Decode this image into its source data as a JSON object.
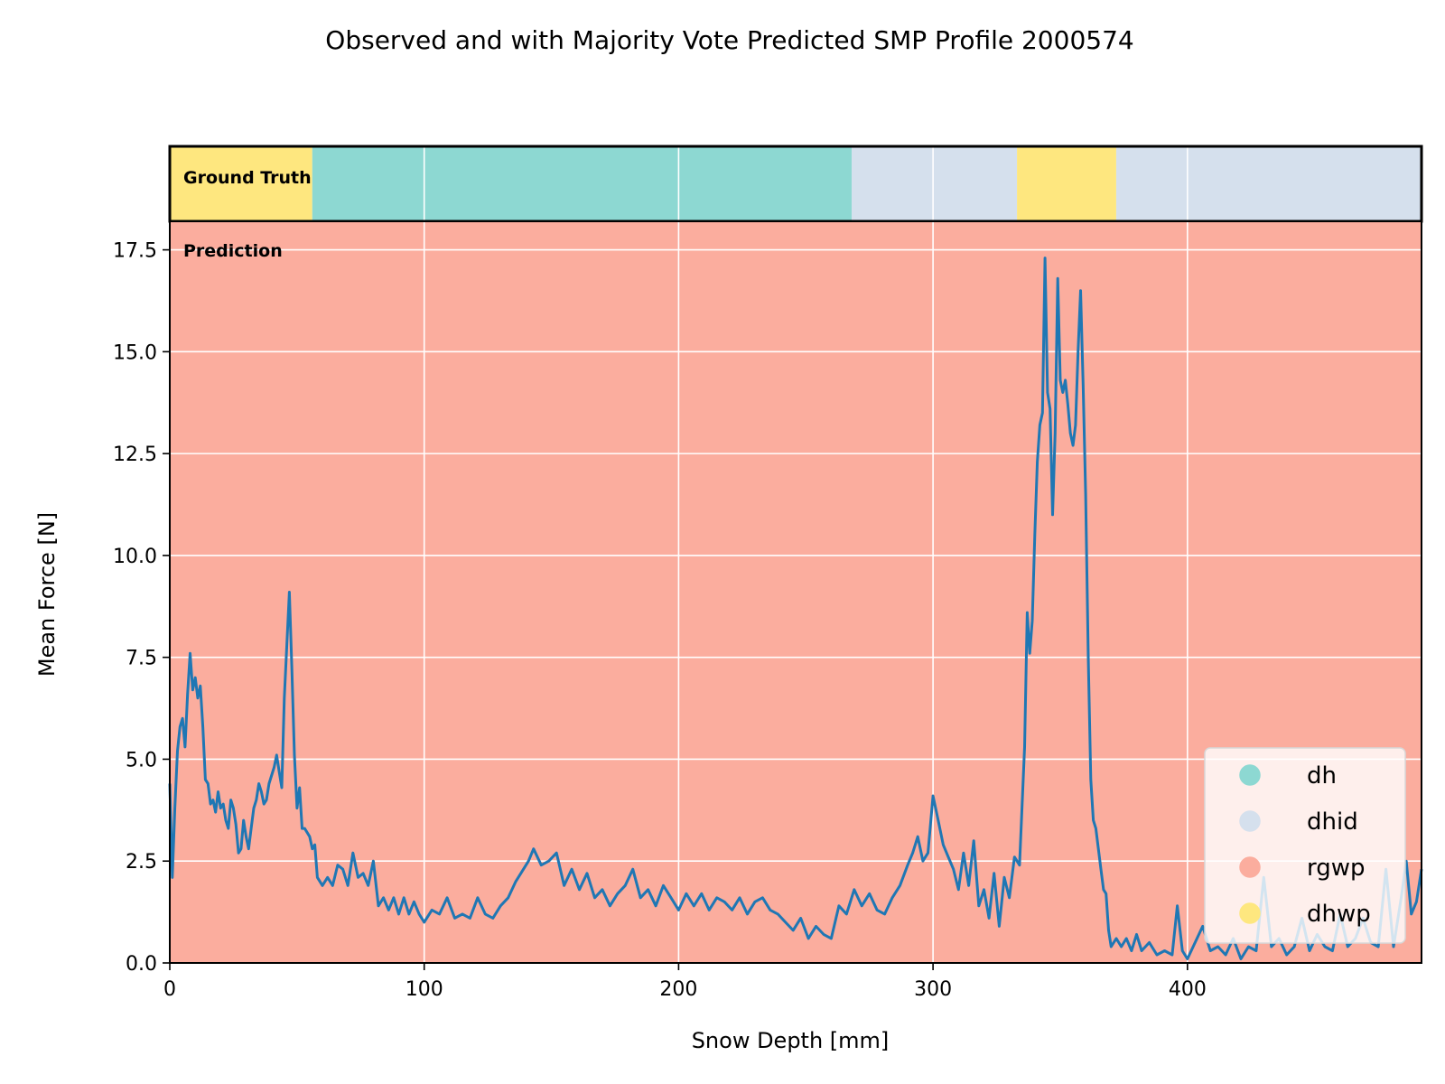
{
  "chart_data": {
    "type": "line",
    "title": "Observed and with Majority Vote Predicted SMP Profile 2000574",
    "xlabel": "Snow Depth [mm]",
    "ylabel": "Mean Force [N]",
    "xlim": [
      0,
      492
    ],
    "ylim": [
      0,
      18.2
    ],
    "xticks": [
      0,
      100,
      200,
      300,
      400
    ],
    "xtick_labels": [
      "0",
      "100",
      "200",
      "300",
      "400"
    ],
    "yticks": [
      0,
      2.5,
      5,
      7.5,
      10,
      12.5,
      15,
      17.5
    ],
    "ytick_labels": [
      "0.0",
      "2.5",
      "5.0",
      "7.5",
      "10.0",
      "12.5",
      "15.0",
      "17.5"
    ],
    "grid": true,
    "legend_position": "bottom-right",
    "panels": {
      "ground_truth_label": "Ground Truth",
      "prediction_label": "Prediction"
    },
    "classes": [
      {
        "name": "dh",
        "color": "#8dd8d2"
      },
      {
        "name": "dhid",
        "color": "#d5e0ed"
      },
      {
        "name": "rgwp",
        "color": "#fbad9e"
      },
      {
        "name": "dhwp",
        "color": "#fee77f"
      }
    ],
    "ground_truth_segments": [
      {
        "start": 0,
        "end": 56,
        "label": "dhwp"
      },
      {
        "start": 56,
        "end": 268,
        "label": "dh"
      },
      {
        "start": 268,
        "end": 333,
        "label": "dhid"
      },
      {
        "start": 333,
        "end": 372,
        "label": "dhwp"
      },
      {
        "start": 372,
        "end": 492,
        "label": "dhid"
      }
    ],
    "prediction_segments": [
      {
        "start": 0,
        "end": 492,
        "label": "rgwp"
      }
    ],
    "series": [
      {
        "color": "#1f77b4",
        "x": [
          0,
          1,
          2,
          3,
          4,
          5,
          6,
          7,
          8,
          9,
          10,
          11,
          12,
          13,
          14,
          15,
          16,
          17,
          18,
          19,
          20,
          21,
          22,
          23,
          24,
          25,
          26,
          27,
          28,
          29,
          30,
          31,
          32,
          33,
          34,
          35,
          36,
          37,
          38,
          39,
          40,
          41,
          42,
          43,
          44,
          45,
          46,
          47,
          48,
          49,
          50,
          51,
          52,
          53,
          54,
          55,
          56,
          57,
          58,
          60,
          62,
          64,
          66,
          68,
          70,
          72,
          74,
          76,
          78,
          80,
          82,
          84,
          86,
          88,
          90,
          92,
          94,
          96,
          98,
          100,
          103,
          106,
          109,
          112,
          115,
          118,
          121,
          124,
          127,
          130,
          133,
          136,
          139,
          141,
          143,
          146,
          149,
          152,
          155,
          158,
          161,
          164,
          167,
          170,
          173,
          176,
          179,
          182,
          185,
          188,
          191,
          194,
          197,
          200,
          203,
          206,
          209,
          212,
          215,
          218,
          221,
          224,
          227,
          230,
          233,
          236,
          239,
          242,
          245,
          248,
          251,
          254,
          257,
          260,
          263,
          266,
          269,
          272,
          275,
          278,
          281,
          284,
          287,
          290,
          292,
          294,
          296,
          298,
          300,
          302,
          304,
          306,
          308,
          310,
          312,
          314,
          316,
          318,
          320,
          322,
          324,
          326,
          328,
          330,
          332,
          334,
          336,
          337,
          338,
          339,
          340,
          341,
          342,
          343,
          344,
          345,
          346,
          347,
          348,
          349,
          350,
          351,
          352,
          353,
          354,
          355,
          356,
          357,
          358,
          359,
          360,
          361,
          362,
          363,
          364,
          365,
          366,
          367,
          368,
          369,
          370,
          372,
          374,
          376,
          378,
          380,
          382,
          385,
          388,
          391,
          394,
          396,
          398,
          400,
          403,
          406,
          409,
          412,
          415,
          418,
          421,
          424,
          427,
          430,
          433,
          436,
          439,
          442,
          445,
          448,
          451,
          454,
          457,
          460,
          463,
          466,
          469,
          472,
          475,
          478,
          481,
          484,
          486,
          488,
          490,
          492
        ],
        "y": [
          4.4,
          2.1,
          3.8,
          5.2,
          5.8,
          6.0,
          5.3,
          6.6,
          7.6,
          6.7,
          7.0,
          6.5,
          6.8,
          5.8,
          4.5,
          4.4,
          3.9,
          4.0,
          3.7,
          4.2,
          3.8,
          3.9,
          3.5,
          3.3,
          4.0,
          3.8,
          3.4,
          2.7,
          2.8,
          3.5,
          3.1,
          2.8,
          3.3,
          3.8,
          4.0,
          4.4,
          4.2,
          3.9,
          4.0,
          4.4,
          4.6,
          4.8,
          5.1,
          4.7,
          4.3,
          6.5,
          7.8,
          9.1,
          7.2,
          5.1,
          3.8,
          4.3,
          3.3,
          3.3,
          3.2,
          3.1,
          2.8,
          2.9,
          2.1,
          1.9,
          2.1,
          1.9,
          2.4,
          2.3,
          1.9,
          2.7,
          2.1,
          2.2,
          1.9,
          2.5,
          1.4,
          1.6,
          1.3,
          1.6,
          1.2,
          1.6,
          1.2,
          1.5,
          1.2,
          1.0,
          1.3,
          1.2,
          1.6,
          1.1,
          1.2,
          1.1,
          1.6,
          1.2,
          1.1,
          1.4,
          1.6,
          2.0,
          2.3,
          2.5,
          2.8,
          2.4,
          2.5,
          2.7,
          1.9,
          2.3,
          1.8,
          2.2,
          1.6,
          1.8,
          1.4,
          1.7,
          1.9,
          2.3,
          1.6,
          1.8,
          1.4,
          1.9,
          1.6,
          1.3,
          1.7,
          1.4,
          1.7,
          1.3,
          1.6,
          1.5,
          1.3,
          1.6,
          1.2,
          1.5,
          1.6,
          1.3,
          1.2,
          1.0,
          0.8,
          1.1,
          0.6,
          0.9,
          0.7,
          0.6,
          1.4,
          1.2,
          1.8,
          1.4,
          1.7,
          1.3,
          1.2,
          1.6,
          1.9,
          2.4,
          2.7,
          3.1,
          2.5,
          2.7,
          4.1,
          3.5,
          2.9,
          2.6,
          2.3,
          1.8,
          2.7,
          1.9,
          3.0,
          1.4,
          1.8,
          1.1,
          2.2,
          0.9,
          2.1,
          1.6,
          2.6,
          2.4,
          5.3,
          8.6,
          7.6,
          8.4,
          10.5,
          12.3,
          13.2,
          13.5,
          17.3,
          14.0,
          13.6,
          11.0,
          13.0,
          16.8,
          14.3,
          14.0,
          14.3,
          13.7,
          13.0,
          12.7,
          13.2,
          15.0,
          16.5,
          14.2,
          11.5,
          7.5,
          4.5,
          3.5,
          3.3,
          2.8,
          2.3,
          1.8,
          1.7,
          0.8,
          0.4,
          0.6,
          0.4,
          0.6,
          0.3,
          0.7,
          0.3,
          0.5,
          0.2,
          0.3,
          0.2,
          1.4,
          0.3,
          0.1,
          0.5,
          0.9,
          0.3,
          0.4,
          0.2,
          0.6,
          0.1,
          0.4,
          0.3,
          2.1,
          0.4,
          0.6,
          0.2,
          0.4,
          1.1,
          0.3,
          0.7,
          0.4,
          0.3,
          1.2,
          0.4,
          0.6,
          1.1,
          0.5,
          0.4,
          2.3,
          0.4,
          1.6,
          2.5,
          1.2,
          1.5,
          2.3
        ]
      }
    ]
  }
}
